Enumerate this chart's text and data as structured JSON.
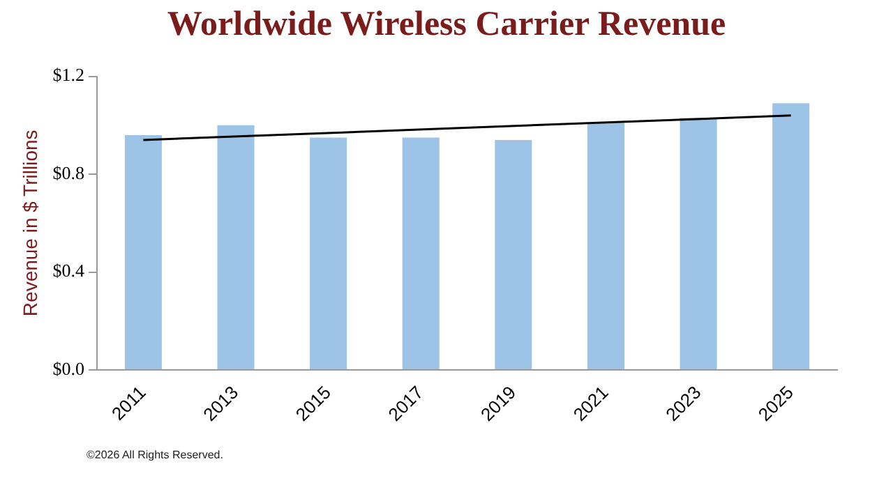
{
  "chart_data": {
    "type": "bar",
    "title": "Worldwide Wireless Carrier Revenue",
    "ylabel": "Revenue in $ Trillions",
    "categories": [
      "2011",
      "2013",
      "2015",
      "2017",
      "2019",
      "2021",
      "2023",
      "2025"
    ],
    "series": [
      {
        "color": "#9dc3e6",
        "values": [
          0.96,
          1.0,
          0.95,
          0.95,
          0.94,
          1.01,
          1.03,
          1.09
        ]
      },
      {
        "type": "line",
        "color": "#000000",
        "values": [
          0.94,
          null,
          null,
          null,
          null,
          null,
          null,
          1.04
        ]
      }
    ],
    "ylim": [
      0,
      1.2
    ],
    "yticks": [
      {
        "value": 0,
        "label": "$0.0"
      },
      {
        "value": 0.4,
        "label": "$0.4"
      },
      {
        "value": 0.8,
        "label": "$0.8"
      },
      {
        "value": 1.2,
        "label": "$1.2"
      }
    ],
    "grid": false,
    "legend": false,
    "marker": "none",
    "annotations": [
      "©2026 All Rights Reserved."
    ]
  }
}
